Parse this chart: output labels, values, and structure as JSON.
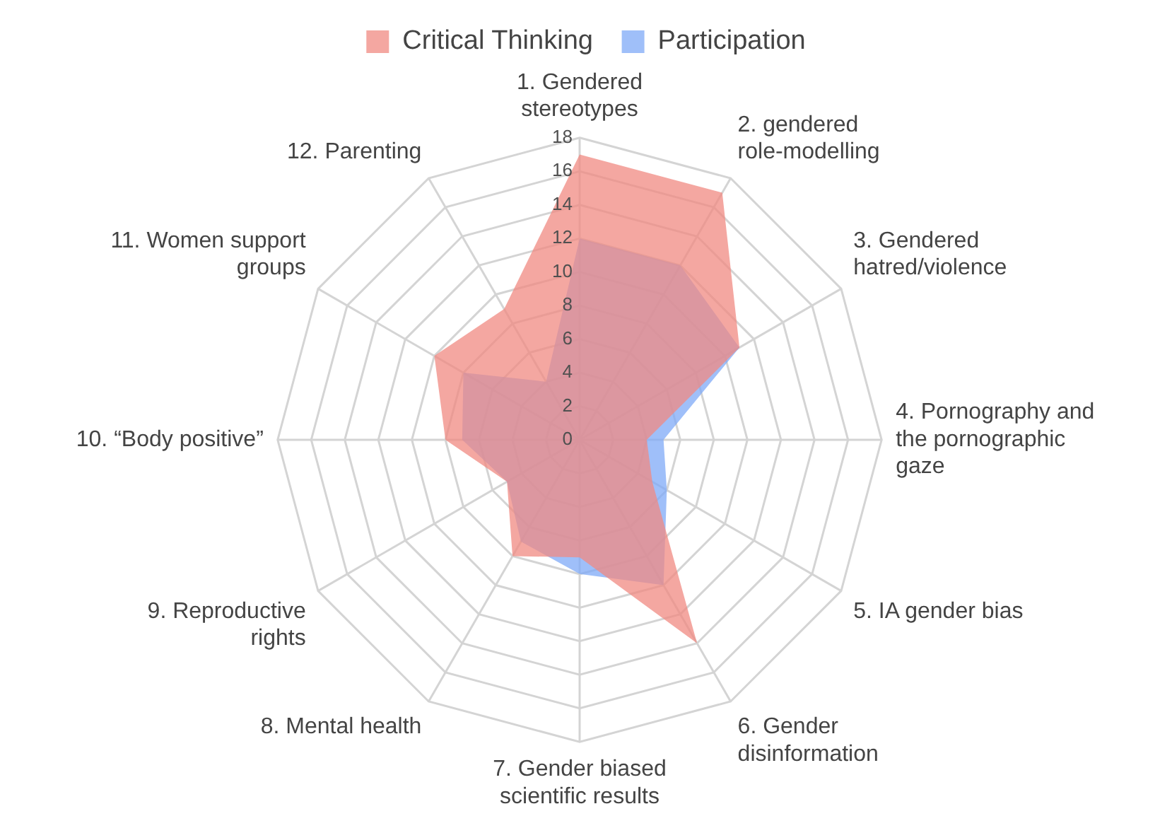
{
  "chart_data": {
    "type": "radar",
    "categories": [
      "1. Gendered stereotypes",
      "2. gendered role-modelling",
      "3. Gendered hatred/violence",
      "4. Pornography and the pornographic gaze",
      "5. IA gender bias",
      "6. Gender disinformation",
      "7. Gender biased scientific results",
      "8. Mental health",
      "9. Reproductive rights",
      "10. “Body positive”",
      "11. Women support groups",
      "12. Parenting"
    ],
    "series": [
      {
        "name": "Critical Thinking",
        "color": "#f08a82",
        "values": [
          17,
          17,
          11,
          4,
          5,
          14,
          7,
          8,
          5,
          8,
          10,
          9
        ]
      },
      {
        "name": "Participation",
        "color": "#7faaf7",
        "values": [
          12,
          12,
          11,
          5,
          6,
          10,
          8,
          7,
          5,
          7,
          8,
          4
        ]
      }
    ],
    "ylim": [
      0,
      18
    ],
    "yticks": [
      0,
      2,
      4,
      6,
      8,
      10,
      12,
      14,
      16,
      18
    ],
    "grid": true,
    "legend": "top"
  }
}
